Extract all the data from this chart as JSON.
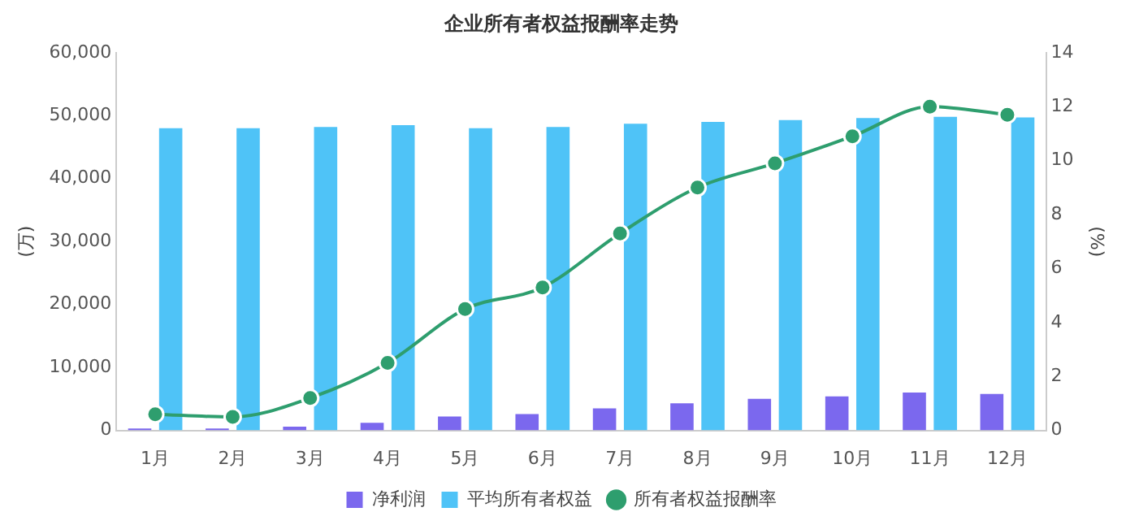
{
  "chart_data": {
    "type": "bar",
    "title": "企业所有者权益报酬率走势",
    "ylabel": "(万)",
    "y2label": "(%)",
    "categories": [
      "1月",
      "2月",
      "3月",
      "4月",
      "5月",
      "6月",
      "7月",
      "8月",
      "9月",
      "10月",
      "11月",
      "12月"
    ],
    "series": [
      {
        "name": "净利润",
        "color": "#7b68ee",
        "values": [
          300,
          300,
          600,
          1200,
          2200,
          2600,
          3500,
          4300,
          5000,
          5400,
          6000,
          5800
        ]
      },
      {
        "name": "平均所有者权益",
        "color": "#4fc3f7",
        "values": [
          48000,
          48000,
          48200,
          48500,
          48000,
          48200,
          48700,
          49000,
          49300,
          49600,
          49800,
          49700
        ]
      },
      {
        "name": "所有者权益报酬率",
        "type": "line",
        "axis": "y2",
        "color": "#2e9e6e",
        "marker": "circle",
        "values": [
          0.6,
          0.5,
          1.2,
          2.5,
          4.5,
          5.3,
          7.3,
          9.0,
          9.9,
          10.9,
          12.0,
          11.7
        ]
      }
    ],
    "ylim": [
      0,
      60000
    ],
    "yticks": [
      0,
      {
        "value": 10000,
        "label": "10,000"
      },
      {
        "value": 20000,
        "label": "20,000"
      },
      {
        "value": 30000,
        "label": "30,000"
      },
      {
        "value": 40000,
        "label": "40,000"
      },
      {
        "value": 50000,
        "label": "50,000"
      },
      {
        "value": 60000,
        "label": "60,000"
      }
    ],
    "y2lim": [
      0,
      14
    ],
    "y2ticks": [
      0,
      2,
      4,
      6,
      8,
      10,
      12,
      14
    ],
    "grid": false,
    "legend": "bottom"
  }
}
